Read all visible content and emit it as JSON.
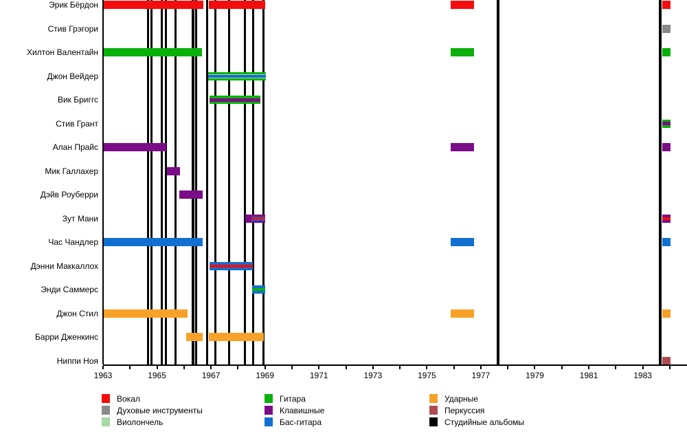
{
  "colors": {
    "vocals": "#f50d0d",
    "brass": "#8a8a8a",
    "cello": "#a8d7a8",
    "guitar": "#0ab00a",
    "keys": "#7b0c87",
    "bass": "#116fd0",
    "drums": "#f8a128",
    "perc": "#ad4b52",
    "albums": "#000000"
  },
  "legend": {
    "columns": [
      [
        {
          "label": "Вокал",
          "color": "vocals"
        },
        {
          "label": "Духовые инструменты",
          "color": "brass"
        },
        {
          "label": "Виолончель",
          "color": "cello"
        }
      ],
      [
        {
          "label": "Гитара",
          "color": "guitar"
        },
        {
          "label": "Клавишные",
          "color": "keys"
        },
        {
          "label": "Бас-гитара",
          "color": "bass"
        }
      ],
      [
        {
          "label": "Ударные",
          "color": "drums"
        },
        {
          "label": "Перкуссия",
          "color": "perc"
        },
        {
          "label": "Студийные альбомы",
          "color": "albums"
        }
      ]
    ]
  },
  "chart_data": {
    "type": "timeline",
    "title": "",
    "x_axis": {
      "year_start": 1963,
      "year_end": 1984.6,
      "tick_every_years": 1,
      "tick_years_last": 1984,
      "label_years": [
        1963,
        1965,
        1967,
        1969,
        1971,
        1973,
        1975,
        1977,
        1979,
        1981,
        1983
      ]
    },
    "members": [
      {
        "name": "Эрик Бёрдон",
        "periods": [
          {
            "start": 1963.0,
            "end": 1966.72,
            "stripes": [
              {
                "color": "vocals",
                "w": 1
              }
            ]
          },
          {
            "start": 1966.92,
            "end": 1969.01,
            "stripes": [
              {
                "color": "vocals",
                "w": 1
              }
            ]
          },
          {
            "start": 1975.88,
            "end": 1976.75,
            "stripes": [
              {
                "color": "vocals",
                "w": 1
              }
            ]
          },
          {
            "start": 1983.72,
            "end": 1984.03,
            "stripes": [
              {
                "color": "vocals",
                "w": 1
              }
            ]
          }
        ]
      },
      {
        "name": "Стив Грэгори",
        "periods": [
          {
            "start": 1983.72,
            "end": 1984.03,
            "stripes": [
              {
                "color": "brass",
                "w": 1
              }
            ]
          }
        ]
      },
      {
        "name": "Хилтон Валентайн",
        "periods": [
          {
            "start": 1963.0,
            "end": 1966.67,
            "stripes": [
              {
                "color": "guitar",
                "w": 1
              }
            ]
          },
          {
            "start": 1975.88,
            "end": 1976.75,
            "stripes": [
              {
                "color": "guitar",
                "w": 1
              }
            ]
          },
          {
            "start": 1983.72,
            "end": 1984.03,
            "stripes": [
              {
                "color": "guitar",
                "w": 1
              }
            ]
          }
        ]
      },
      {
        "name": "Джон Вейдер",
        "periods": [
          {
            "start": 1966.9,
            "end": 1969.03,
            "stripes": [
              {
                "color": "guitar",
                "w": 3
              },
              {
                "color": "cello",
                "w": 1
              },
              {
                "color": "bass",
                "w": 4
              },
              {
                "color": "cello",
                "w": 1
              },
              {
                "color": "guitar",
                "w": 3
              }
            ]
          }
        ]
      },
      {
        "name": "Вик Бриггс",
        "periods": [
          {
            "start": 1966.95,
            "end": 1968.83,
            "stripes": [
              {
                "color": "guitar",
                "w": 3.5
              },
              {
                "color": "keys",
                "w": 5
              },
              {
                "color": "guitar",
                "w": 3.5
              }
            ]
          }
        ]
      },
      {
        "name": "Стив Грант",
        "periods": [
          {
            "start": 1983.72,
            "end": 1984.03,
            "stripes": [
              {
                "color": "guitar",
                "w": 3.5
              },
              {
                "color": "keys",
                "w": 5
              },
              {
                "color": "guitar",
                "w": 3.5
              }
            ]
          }
        ]
      },
      {
        "name": "Алан Прайс",
        "periods": [
          {
            "start": 1963.0,
            "end": 1965.33,
            "stripes": [
              {
                "color": "keys",
                "w": 1
              }
            ]
          },
          {
            "start": 1975.88,
            "end": 1976.75,
            "stripes": [
              {
                "color": "keys",
                "w": 1
              }
            ]
          },
          {
            "start": 1983.72,
            "end": 1984.03,
            "stripes": [
              {
                "color": "keys",
                "w": 1
              }
            ]
          }
        ]
      },
      {
        "name": "Мик Галлахер",
        "periods": [
          {
            "start": 1965.36,
            "end": 1965.84,
            "stripes": [
              {
                "color": "keys",
                "w": 1
              }
            ]
          }
        ]
      },
      {
        "name": "Дэйв Роуберри",
        "periods": [
          {
            "start": 1965.83,
            "end": 1966.69,
            "stripes": [
              {
                "color": "keys",
                "w": 1
              }
            ]
          }
        ]
      },
      {
        "name": "Зут Мани",
        "periods": [
          {
            "start": 1968.27,
            "end": 1968.5,
            "stripes": [
              {
                "color": "keys",
                "w": 1
              }
            ]
          },
          {
            "start": 1968.5,
            "end": 1969.01,
            "stripes": [
              {
                "color": "keys",
                "w": 3
              },
              {
                "color": "bass",
                "w": 1.5
              },
              {
                "color": "vocals",
                "w": 3
              },
              {
                "color": "bass",
                "w": 1.5
              },
              {
                "color": "keys",
                "w": 3
              }
            ]
          },
          {
            "start": 1983.72,
            "end": 1984.03,
            "stripes": [
              {
                "color": "keys",
                "w": 4
              },
              {
                "color": "vocals",
                "w": 4
              },
              {
                "color": "keys",
                "w": 4
              }
            ]
          }
        ]
      },
      {
        "name": "Час Чандлер",
        "periods": [
          {
            "start": 1963.0,
            "end": 1966.69,
            "stripes": [
              {
                "color": "bass",
                "w": 1
              }
            ]
          },
          {
            "start": 1975.88,
            "end": 1976.75,
            "stripes": [
              {
                "color": "bass",
                "w": 1
              }
            ]
          },
          {
            "start": 1983.72,
            "end": 1984.03,
            "stripes": [
              {
                "color": "bass",
                "w": 1
              }
            ]
          }
        ]
      },
      {
        "name": "Дэнни Маккаллох",
        "periods": [
          {
            "start": 1966.95,
            "end": 1968.55,
            "stripes": [
              {
                "color": "bass",
                "w": 4
              },
              {
                "color": "vocals",
                "w": 4
              },
              {
                "color": "bass",
                "w": 4
              }
            ]
          }
        ]
      },
      {
        "name": "Энди Саммерс",
        "periods": [
          {
            "start": 1968.53,
            "end": 1969.01,
            "stripes": [
              {
                "color": "bass",
                "w": 4
              },
              {
                "color": "guitar",
                "w": 4
              },
              {
                "color": "bass",
                "w": 4
              }
            ]
          }
        ]
      },
      {
        "name": "Джон Стил",
        "periods": [
          {
            "start": 1963.0,
            "end": 1966.12,
            "stripes": [
              {
                "color": "drums",
                "w": 1
              }
            ]
          },
          {
            "start": 1975.88,
            "end": 1976.75,
            "stripes": [
              {
                "color": "drums",
                "w": 1
              }
            ]
          },
          {
            "start": 1983.72,
            "end": 1984.03,
            "stripes": [
              {
                "color": "drums",
                "w": 1
              }
            ]
          }
        ]
      },
      {
        "name": "Барри Дженкинс",
        "periods": [
          {
            "start": 1966.08,
            "end": 1966.69,
            "stripes": [
              {
                "color": "drums",
                "w": 1
              }
            ]
          },
          {
            "start": 1966.92,
            "end": 1968.96,
            "stripes": [
              {
                "color": "drums",
                "w": 1
              }
            ]
          }
        ]
      },
      {
        "name": "Ниппи Ноя",
        "periods": [
          {
            "start": 1983.72,
            "end": 1984.03,
            "stripes": [
              {
                "color": "perc",
                "w": 1
              }
            ]
          }
        ]
      }
    ],
    "albums": [
      {
        "year": 1964.655,
        "width": 3
      },
      {
        "year": 1964.795,
        "width": 3
      },
      {
        "year": 1965.177,
        "width": 3
      },
      {
        "year": 1965.317,
        "width": 3
      },
      {
        "year": 1965.686,
        "width": 3
      },
      {
        "year": 1966.335,
        "width": 3.5
      },
      {
        "year": 1966.449,
        "width": 3.5
      },
      {
        "year": 1966.869,
        "width": 3
      },
      {
        "year": 1967.175,
        "width": 3
      },
      {
        "year": 1967.684,
        "width": 3
      },
      {
        "year": 1968.257,
        "width": 3
      },
      {
        "year": 1968.575,
        "width": 3
      },
      {
        "year": 1968.957,
        "width": 3
      },
      {
        "year": 1977.638,
        "width": 4
      },
      {
        "year": 1983.646,
        "width": 4
      }
    ]
  }
}
